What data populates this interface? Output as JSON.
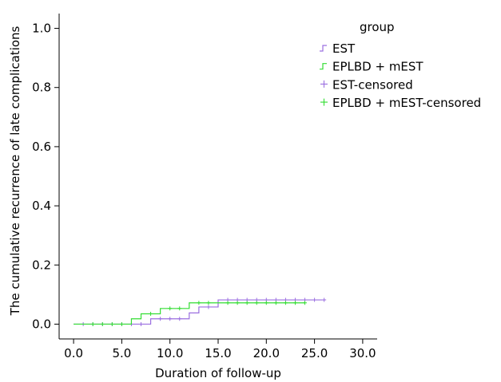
{
  "chart_data": {
    "type": "line",
    "step": true,
    "xlabel": "Duration of follow-up",
    "ylabel": "The cumulative recurrence of late complications",
    "xlim": [
      -1.5,
      31.5
    ],
    "ylim": [
      -0.05,
      1.05
    ],
    "x_ticks": [
      0,
      5,
      10,
      15,
      20,
      25,
      30
    ],
    "x_tick_labels": [
      "0.0",
      "5.0",
      "10.0",
      "15.0",
      "20.0",
      "25.0",
      "30.0"
    ],
    "y_ticks": [
      0,
      0.2,
      0.4,
      0.6,
      0.8,
      1.0
    ],
    "y_tick_labels": [
      "0.0",
      "0.2",
      "0.4",
      "0.6",
      "0.8",
      "1.0"
    ],
    "legend": {
      "title": "group",
      "placement": "top-right",
      "entries": [
        "EST",
        "EPLBD + mEST",
        "EST-censored",
        "EPLBD + mEST-censored"
      ]
    },
    "series": [
      {
        "name": "EST",
        "color": "#9b6fe0",
        "x": [
          0,
          8,
          8,
          12,
          12,
          13,
          13,
          15,
          15,
          26
        ],
        "y": [
          0,
          0,
          0.018,
          0.018,
          0.038,
          0.038,
          0.058,
          0.058,
          0.082,
          0.082
        ],
        "censored_x": [
          1,
          2,
          3,
          4,
          5,
          6,
          7,
          9,
          10,
          11,
          14,
          16,
          17,
          18,
          19,
          20,
          21,
          22,
          23,
          24,
          25,
          26
        ],
        "censored_y": [
          0,
          0,
          0,
          0,
          0,
          0,
          0,
          0.018,
          0.018,
          0.018,
          0.058,
          0.082,
          0.082,
          0.082,
          0.082,
          0.082,
          0.082,
          0.082,
          0.082,
          0.082,
          0.082,
          0.082
        ]
      },
      {
        "name": "EPLBD + mEST",
        "color": "#33dd33",
        "x": [
          0,
          6,
          6,
          7,
          7,
          9,
          9,
          12,
          12,
          24
        ],
        "y": [
          0,
          0,
          0.018,
          0.018,
          0.035,
          0.035,
          0.053,
          0.053,
          0.072,
          0.072
        ],
        "censored_x": [
          2,
          3,
          4,
          5,
          8,
          10,
          11,
          13,
          14,
          16,
          17,
          18,
          19,
          20,
          21,
          22,
          23,
          24
        ],
        "censored_y": [
          0,
          0,
          0,
          0,
          0.035,
          0.053,
          0.053,
          0.072,
          0.072,
          0.072,
          0.072,
          0.072,
          0.072,
          0.072,
          0.072,
          0.072,
          0.072,
          0.072
        ]
      }
    ]
  }
}
